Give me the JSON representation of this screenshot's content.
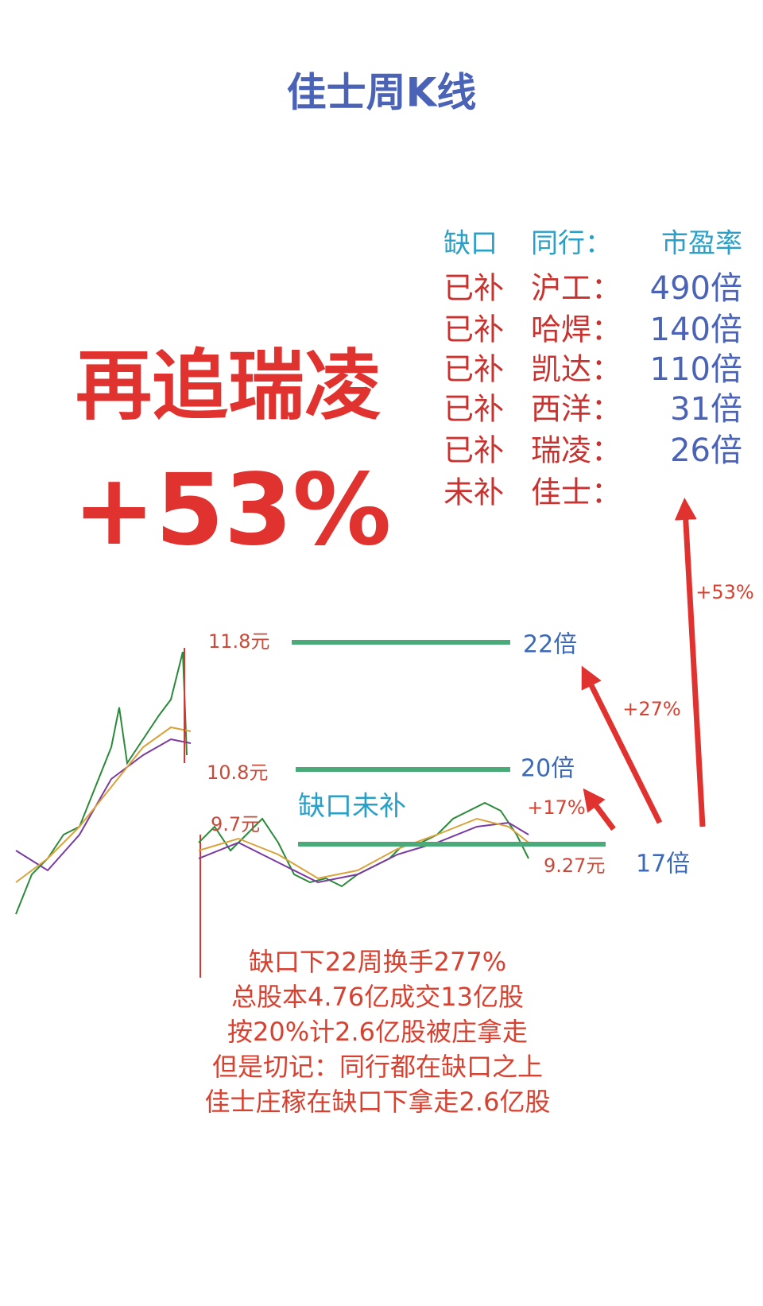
{
  "title": "佳士周K线",
  "headline": {
    "text": "再追瑞凌",
    "pct": "+53%"
  },
  "table": {
    "header": [
      "缺口",
      "同行：",
      "市盈率"
    ],
    "rows": [
      [
        "已补",
        "沪工：",
        "490倍"
      ],
      [
        "已补",
        "哈焊：",
        "140倍"
      ],
      [
        "已补",
        "凯达：",
        "110倍"
      ],
      [
        "已补",
        "西洋：",
        "31倍"
      ],
      [
        "已补",
        "瑞凌：",
        "26倍"
      ],
      [
        "未补",
        "佳士："
      ]
    ]
  },
  "chart_labels": {
    "prices": [
      "11.8元",
      "10.8元",
      "9.7元",
      "9.27元"
    ],
    "pe": [
      "22倍",
      "20倍",
      "17倍"
    ],
    "gains": [
      "+53%",
      "+27%",
      "+17%"
    ],
    "gap": "缺口未补"
  },
  "notes": [
    "缺口下22周换手277%",
    "总股本4.76亿成交13亿股",
    "按20%计2.6亿股被庄拿走",
    "但是切记：同行都在缺口之上",
    "佳士庄稼在缺口下拿走2.6亿股"
  ]
}
